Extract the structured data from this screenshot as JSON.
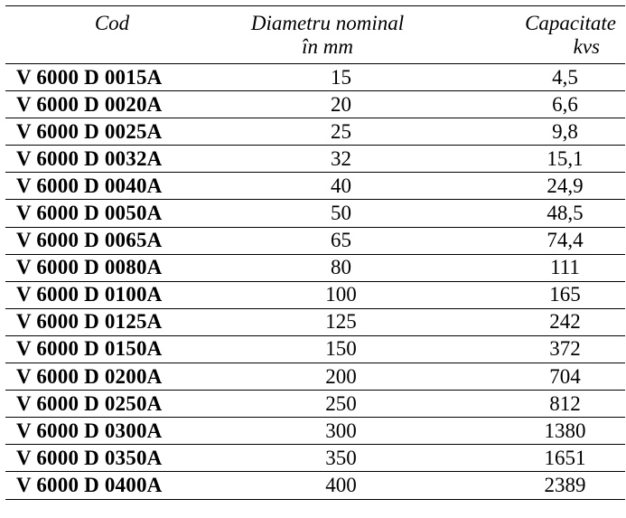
{
  "table": {
    "headers": {
      "code": "Cod",
      "diameter_line1": "Diametru nominal",
      "diameter_line2": "în mm",
      "capacity_line1": "Capacitate",
      "capacity_line2": "kvs"
    },
    "rows": [
      {
        "code": "V 6000 D 0015A",
        "diameter": "15",
        "capacity": "4,5"
      },
      {
        "code": "V 6000 D 0020A",
        "diameter": "20",
        "capacity": "6,6"
      },
      {
        "code": "V 6000 D 0025A",
        "diameter": "25",
        "capacity": "9,8"
      },
      {
        "code": "V 6000 D 0032A",
        "diameter": "32",
        "capacity": "15,1"
      },
      {
        "code": "V 6000 D 0040A",
        "diameter": "40",
        "capacity": "24,9"
      },
      {
        "code": "V 6000 D 0050A",
        "diameter": "50",
        "capacity": "48,5"
      },
      {
        "code": "V 6000 D 0065A",
        "diameter": "65",
        "capacity": "74,4"
      },
      {
        "code": "V 6000 D 0080A",
        "diameter": "80",
        "capacity": "111"
      },
      {
        "code": "V 6000 D 0100A",
        "diameter": "100",
        "capacity": "165"
      },
      {
        "code": "V 6000 D 0125A",
        "diameter": "125",
        "capacity": "242"
      },
      {
        "code": "V 6000 D 0150A",
        "diameter": "150",
        "capacity": "372"
      },
      {
        "code": "V 6000 D 0200A",
        "diameter": "200",
        "capacity": "704"
      },
      {
        "code": "V 6000 D 0250A",
        "diameter": "250",
        "capacity": "812"
      },
      {
        "code": "V 6000 D 0300A",
        "diameter": "300",
        "capacity": "1380"
      },
      {
        "code": "V 6000 D 0350A",
        "diameter": "350",
        "capacity": "1651"
      },
      {
        "code": "V 6000 D 0400A",
        "diameter": "400",
        "capacity": "2389"
      }
    ]
  }
}
